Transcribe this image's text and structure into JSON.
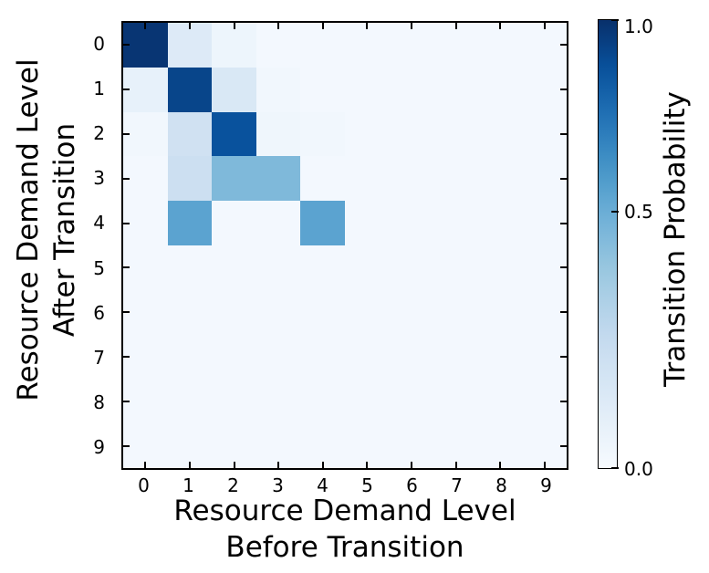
{
  "chart_data": {
    "type": "heatmap",
    "title": "",
    "xlabel_lines": [
      "Resource Demand Level",
      "Before Transition"
    ],
    "ylabel_lines": [
      "Resource Demand Level",
      "After Transition"
    ],
    "x_ticks": [
      "0",
      "1",
      "2",
      "3",
      "4",
      "5",
      "6",
      "7",
      "8",
      "9"
    ],
    "y_ticks": [
      "0",
      "1",
      "2",
      "3",
      "4",
      "5",
      "6",
      "7",
      "8",
      "9"
    ],
    "value_range": [
      0.0,
      1.0
    ],
    "matrix": [
      [
        0.98,
        0.13,
        0.05,
        0.02,
        0.02,
        0.02,
        0.02,
        0.02,
        0.02,
        0.02
      ],
      [
        0.08,
        0.92,
        0.15,
        0.03,
        0.02,
        0.02,
        0.02,
        0.02,
        0.02,
        0.02
      ],
      [
        0.03,
        0.2,
        0.87,
        0.04,
        0.03,
        0.02,
        0.02,
        0.02,
        0.02,
        0.02
      ],
      [
        0.02,
        0.22,
        0.45,
        0.45,
        0.02,
        0.02,
        0.02,
        0.02,
        0.02,
        0.02
      ],
      [
        0.02,
        0.55,
        0.02,
        0.02,
        0.55,
        0.02,
        0.02,
        0.02,
        0.02,
        0.02
      ],
      [
        0.02,
        0.02,
        0.02,
        0.02,
        0.02,
        0.02,
        0.02,
        0.02,
        0.02,
        0.02
      ],
      [
        0.02,
        0.02,
        0.02,
        0.02,
        0.02,
        0.02,
        0.02,
        0.02,
        0.02,
        0.02
      ],
      [
        0.02,
        0.02,
        0.02,
        0.02,
        0.02,
        0.02,
        0.02,
        0.02,
        0.02,
        0.02
      ],
      [
        0.02,
        0.02,
        0.02,
        0.02,
        0.02,
        0.02,
        0.02,
        0.02,
        0.02,
        0.02
      ],
      [
        0.02,
        0.02,
        0.02,
        0.02,
        0.02,
        0.02,
        0.02,
        0.02,
        0.02,
        0.02
      ]
    ],
    "colormap": {
      "name": "Blues",
      "min_hex": "#f7fbff",
      "max_hex": "#08306b"
    },
    "colorbar": {
      "label": "Transition Probability",
      "ticks": [
        {
          "label": "1.0",
          "pos_from_top": 0.0
        },
        {
          "label": "0.5",
          "pos_from_top": 0.428
        },
        {
          "label": "0.0",
          "pos_from_top": 1.0
        }
      ]
    },
    "grid": false,
    "legend": false
  },
  "colors": {
    "frame": "#000000",
    "background": "#ffffff"
  }
}
